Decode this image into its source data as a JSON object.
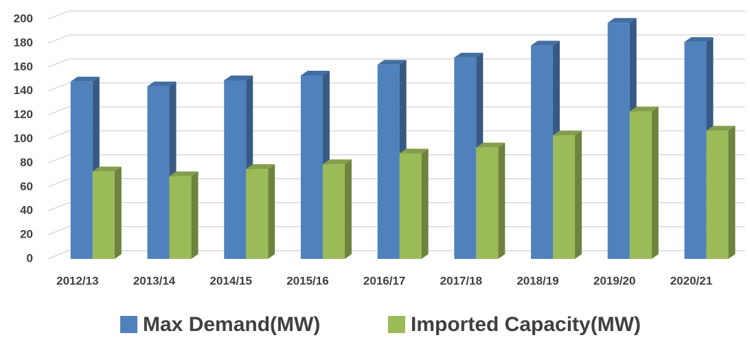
{
  "chart_data": {
    "type": "bar3d",
    "categories": [
      "2012/13",
      "2013/14",
      "2014/15",
      "2015/16",
      "2016/17",
      "2017/18",
      "2018/19",
      "2019/20",
      "2020/21"
    ],
    "series": [
      {
        "name": "Max Demand(MW)",
        "color": "#4f81bd",
        "values": [
          148,
          144,
          149,
          153,
          162,
          168,
          178,
          197,
          181
        ]
      },
      {
        "name": "Imported Capacity(MW)",
        "color": "#9bbb59",
        "values": [
          73,
          69,
          75,
          79,
          88,
          93,
          103,
          123,
          107
        ]
      }
    ],
    "ylim": [
      0,
      200
    ],
    "yticks": [
      0,
      20,
      40,
      60,
      80,
      100,
      120,
      140,
      160,
      180,
      200
    ],
    "grid": true,
    "legend": "bottom"
  }
}
